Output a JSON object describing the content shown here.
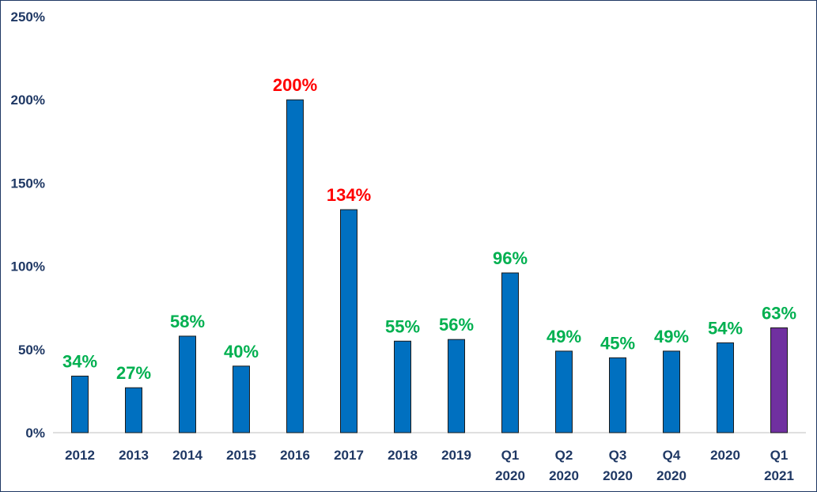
{
  "chart_data": {
    "type": "bar",
    "categories": [
      [
        "2012"
      ],
      [
        "2013"
      ],
      [
        "2014"
      ],
      [
        "2015"
      ],
      [
        "2016"
      ],
      [
        "2017"
      ],
      [
        "2018"
      ],
      [
        "2019"
      ],
      [
        "Q1",
        "2020"
      ],
      [
        "Q2",
        "2020"
      ],
      [
        "Q3",
        "2020"
      ],
      [
        "Q4",
        "2020"
      ],
      [
        "2020"
      ],
      [
        "Q1",
        "2021"
      ]
    ],
    "values": [
      34,
      27,
      58,
      40,
      200,
      134,
      55,
      56,
      96,
      49,
      45,
      49,
      54,
      63
    ],
    "data_labels": [
      "34%",
      "27%",
      "58%",
      "40%",
      "200%",
      "134%",
      "55%",
      "56%",
      "96%",
      "49%",
      "45%",
      "49%",
      "54%",
      "63%"
    ],
    "label_colors": [
      "#00b050",
      "#00b050",
      "#00b050",
      "#00b050",
      "#ff0000",
      "#ff0000",
      "#00b050",
      "#00b050",
      "#00b050",
      "#00b050",
      "#00b050",
      "#00b050",
      "#00b050",
      "#00b050"
    ],
    "bar_colors": [
      "#0070c0",
      "#0070c0",
      "#0070c0",
      "#0070c0",
      "#0070c0",
      "#0070c0",
      "#0070c0",
      "#0070c0",
      "#0070c0",
      "#0070c0",
      "#0070c0",
      "#0070c0",
      "#0070c0",
      "#7030a0"
    ],
    "y_ticks": [
      0,
      50,
      100,
      150,
      200,
      250
    ],
    "y_tick_labels": [
      "0%",
      "50%",
      "100%",
      "150%",
      "200%",
      "250%"
    ],
    "ylim": [
      0,
      250
    ],
    "grid": false,
    "legend": "none",
    "title": "",
    "xlabel": "",
    "ylabel": ""
  }
}
